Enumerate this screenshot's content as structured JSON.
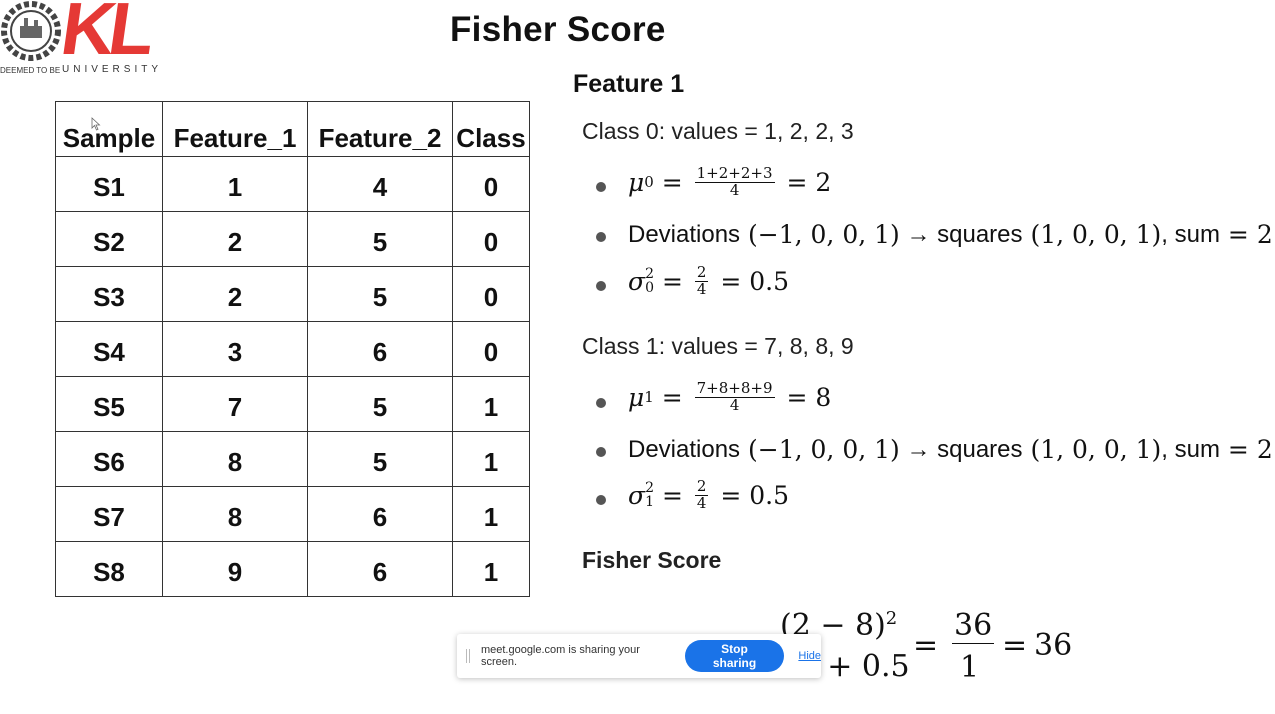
{
  "logo": {
    "brand": "KL",
    "deemed": "DEEMED TO BE",
    "university": "UNIVERSITY"
  },
  "slide": {
    "title": "Fisher Score",
    "table": {
      "headers": [
        "Sample",
        "Feature_1",
        "Feature_2",
        "Class"
      ],
      "rows": [
        [
          "S1",
          "1",
          "4",
          "0"
        ],
        [
          "S2",
          "2",
          "5",
          "0"
        ],
        [
          "S3",
          "2",
          "5",
          "0"
        ],
        [
          "S4",
          "3",
          "6",
          "0"
        ],
        [
          "S5",
          "7",
          "5",
          "1"
        ],
        [
          "S6",
          "8",
          "5",
          "1"
        ],
        [
          "S7",
          "8",
          "6",
          "1"
        ],
        [
          "S8",
          "9",
          "6",
          "1"
        ]
      ]
    },
    "feature_heading": "Feature 1",
    "class0": {
      "line": "Class 0: values = 1, 2, 2, 3",
      "mean_num": "1+2+2+3",
      "mean_den": "4",
      "mean_result": "2",
      "dev_label": "Deviations",
      "dev_values": "(−1, 0, 0, 1)",
      "squares_label": "squares",
      "squares_values": "(1, 0, 0, 1)",
      "sum_label": "sum",
      "sum_value": "2",
      "var_num": "2",
      "var_den": "4",
      "var_result": "0.5"
    },
    "class1": {
      "line": "Class 1: values = 7, 8, 8, 9",
      "mean_num": "7+8+8+9",
      "mean_den": "4",
      "mean_result": "8",
      "dev_label": "Deviations",
      "dev_values": "(−1, 0, 0, 1)",
      "squares_label": "squares",
      "squares_values": "(1, 0, 0, 1)",
      "sum_label": "sum",
      "sum_value": "2",
      "var_num": "2",
      "var_den": "4",
      "var_result": "0.5"
    },
    "fisher_heading": "Fisher Score",
    "final": {
      "numerator": "(2 − 8)",
      "exp": "2",
      "den_tail": "0.5 + 0.5",
      "frac_num": "36",
      "frac_den": "1",
      "result": "36"
    }
  },
  "sharebar": {
    "message": "meet.google.com is sharing your screen.",
    "stop_label": "Stop sharing",
    "hide_label": "Hide",
    "accent": "#1a73e8"
  }
}
